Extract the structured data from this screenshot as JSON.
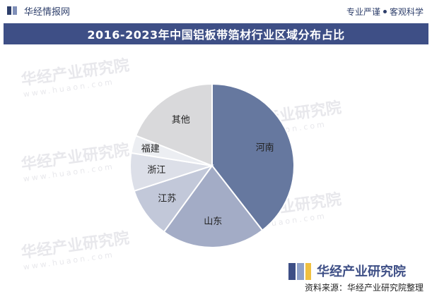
{
  "header": {
    "brand": "华经情报网",
    "tagline_left": "专业严谨",
    "tagline_right": "客观科学"
  },
  "chart_data": {
    "type": "pie",
    "title": "2016-2023年中国铝板带箔材行业区域分布占比",
    "labels": [
      "河南",
      "山东",
      "江苏",
      "浙江",
      "福建",
      "其他"
    ],
    "values": [
      39.5,
      20.5,
      10.0,
      7.5,
      3.5,
      19.0
    ],
    "colors": [
      "#66789f",
      "#a3acc6",
      "#c2c8d9",
      "#dcdfe8",
      "#eceef2",
      "#d9d9db"
    ]
  },
  "watermark": {
    "text": "华经产业研究院",
    "url": "www.huaon.com"
  },
  "footer": {
    "logo_text": "华经产业研究院",
    "source": "资料来源：华经产业研究院整理"
  }
}
